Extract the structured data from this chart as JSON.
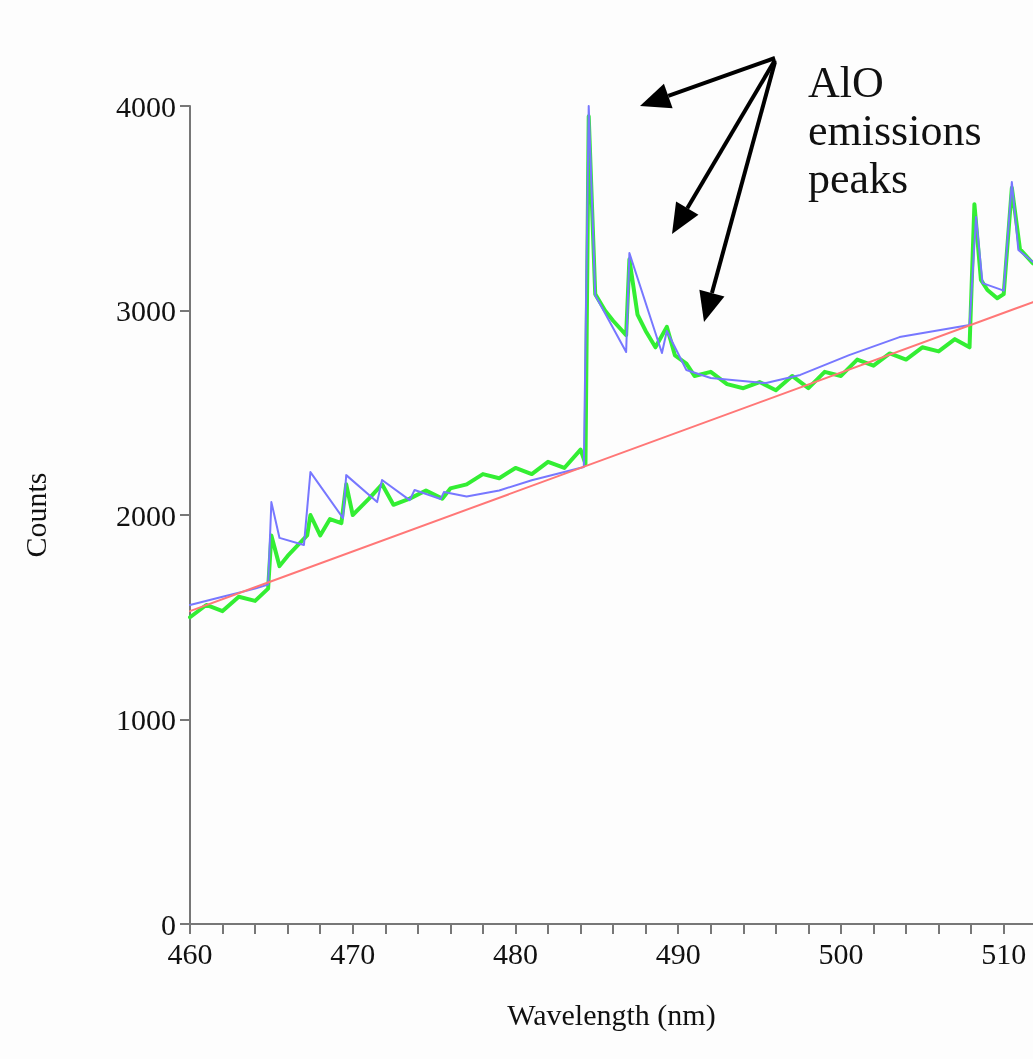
{
  "chart_data": {
    "type": "line",
    "xlabel": "Wavelength (nm)",
    "ylabel": "Counts",
    "annotations": [
      "AlO emissions peaks"
    ],
    "xlim": [
      460,
      511.8
    ],
    "ylim": [
      0,
      4000
    ],
    "xticks": [
      460,
      {
        "value": 462,
        "label": null
      },
      {
        "value": 464,
        "label": null
      },
      {
        "value": 466,
        "label": null
      },
      {
        "value": 468,
        "label": null
      },
      470,
      {
        "value": 472,
        "label": null
      },
      {
        "value": 474,
        "label": null
      },
      {
        "value": 476,
        "label": null
      },
      {
        "value": 478,
        "label": null
      },
      480,
      {
        "value": 482,
        "label": null
      },
      {
        "value": 484,
        "label": null
      },
      {
        "value": 486,
        "label": null
      },
      {
        "value": 488,
        "label": null
      },
      490,
      {
        "value": 492,
        "label": null
      },
      {
        "value": 494,
        "label": null
      },
      {
        "value": 496,
        "label": null
      },
      {
        "value": 498,
        "label": null
      },
      500,
      {
        "value": 502,
        "label": null
      },
      {
        "value": 504,
        "label": null
      },
      {
        "value": 506,
        "label": null
      },
      {
        "value": 508,
        "label": null
      },
      510
    ],
    "yticks": [
      0,
      1000,
      2000,
      3000,
      4000
    ],
    "grid": false,
    "marker": "none",
    "line_style": "solid",
    "series": [
      {
        "color": "#33ee33",
        "x": [
          460,
          461,
          462,
          463,
          464,
          464.8,
          465.0,
          465.5,
          466,
          466.6,
          467.2,
          467.4,
          468,
          468.6,
          469.3,
          469.6,
          470,
          471,
          471.8,
          472.5,
          473.5,
          474.5,
          475.5,
          476,
          477,
          478,
          479,
          480,
          481,
          482,
          483,
          484,
          484.3,
          484.5,
          484.9,
          485.5,
          486,
          486.8,
          487.0,
          487.5,
          488,
          488.6,
          489.3,
          489.8,
          490.5,
          491,
          492,
          493,
          494,
          495,
          496,
          497,
          498,
          499,
          500,
          501,
          502,
          503,
          504,
          505,
          506,
          507,
          507.9,
          508.2,
          508.6,
          509,
          509.6,
          510.0,
          510.5,
          511,
          511.8
        ],
        "values": [
          1500,
          1560,
          1530,
          1600,
          1580,
          1640,
          1900,
          1750,
          1800,
          1850,
          1900,
          2000,
          1900,
          1980,
          1960,
          2150,
          2000,
          2080,
          2150,
          2050,
          2080,
          2120,
          2080,
          2130,
          2150,
          2200,
          2180,
          2230,
          2200,
          2260,
          2230,
          2320,
          2250,
          3950,
          3080,
          3000,
          2950,
          2880,
          3250,
          2980,
          2900,
          2820,
          2920,
          2780,
          2740,
          2680,
          2700,
          2640,
          2620,
          2650,
          2610,
          2680,
          2620,
          2700,
          2680,
          2760,
          2730,
          2790,
          2760,
          2820,
          2800,
          2860,
          2820,
          3520,
          3150,
          3100,
          3060,
          3080,
          3600,
          3300,
          3230
        ]
      },
      {
        "color": "#7777ff",
        "x": [
          460,
          462,
          464,
          464.8,
          465.0,
          465.5,
          467.0,
          467.4,
          469.4,
          469.6,
          471.5,
          471.8,
          473.5,
          473.8,
          475.4,
          475.6,
          477,
          479,
          481,
          483,
          484.2,
          484.5,
          484.9,
          486.8,
          487.0,
          489.0,
          489.3,
          490.5,
          492,
          495.4,
          497.5,
          500.5,
          503.6,
          507.9,
          508.3,
          508.7,
          510.0,
          510.5,
          510.9,
          511.8
        ],
        "values": [
          1560,
          1600,
          1640,
          1660,
          2063,
          1888,
          1853,
          2210,
          1985,
          2195,
          2063,
          2171,
          2073,
          2122,
          2078,
          2112,
          2090,
          2120,
          2170,
          2210,
          2235,
          4000,
          3075,
          2797,
          3281,
          2792,
          2900,
          2709,
          2670,
          2645,
          2685,
          2782,
          2870,
          2929,
          3457,
          3134,
          3097,
          3628,
          3296,
          3237
        ]
      },
      {
        "type": "line",
        "color": "#ff7777",
        "x": [
          460,
          511.8
        ],
        "values": [
          1530,
          3041
        ]
      }
    ]
  }
}
